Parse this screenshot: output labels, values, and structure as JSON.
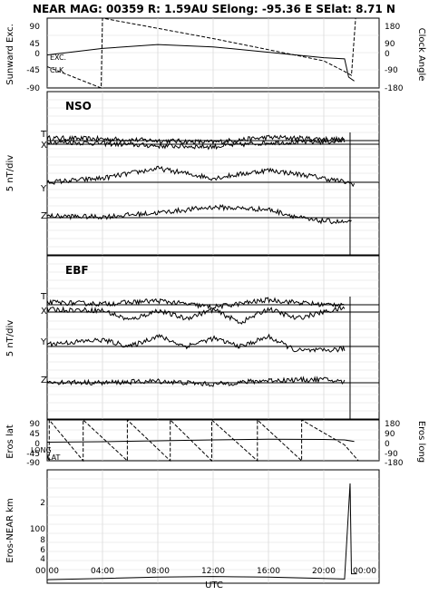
{
  "header": {
    "title": "NEAR MAG: 00359  R: 1.59AU  SElong:  -95.36 E  SElat:    8.71 N"
  },
  "panel1": {
    "left_label": "Sunward Exc.",
    "right_label": "Clock Angle",
    "left_ticks": [
      "90",
      "45",
      "0",
      "-45",
      "-90"
    ],
    "right_ticks": [
      "180",
      "90",
      "0",
      "-90",
      "-180"
    ],
    "annotations": [
      "EXC.",
      "CLK"
    ]
  },
  "panel2": {
    "title": "NSO",
    "ylabel": "5 nT/div",
    "traces": [
      "T",
      "X",
      "Y",
      "Z"
    ]
  },
  "panel3": {
    "title": "EBF",
    "ylabel": "5 nT/div",
    "traces": [
      "T",
      "X",
      "Y",
      "Z"
    ]
  },
  "panel4": {
    "left_label": "Eros lat",
    "right_label": "Eros long",
    "left_ticks": [
      "90",
      "45",
      "0",
      "-45",
      "-90"
    ],
    "right_ticks": [
      "180",
      "90",
      "0",
      "-90",
      "-180"
    ],
    "annotations": [
      "LONG",
      "LAT"
    ]
  },
  "panel5": {
    "left_label": "Eros-NEAR km",
    "ticks": [
      "2",
      "100",
      "8",
      "6",
      "4"
    ]
  },
  "xaxis": {
    "label": "UTC",
    "ticks": [
      "00:00",
      "04:00",
      "08:00",
      "12:00",
      "16:00",
      "20:00",
      "00:00"
    ]
  },
  "chart_data": {
    "type": "line",
    "x_range_hours": [
      0,
      24
    ],
    "grid": true,
    "panels": [
      {
        "name": "panel1",
        "left_axis_range": [
          -90,
          90
        ],
        "right_axis_range": [
          -180,
          180
        ],
        "series": [
          {
            "name": "EXC.",
            "axis": "left",
            "x": [
              0,
              4,
              8,
              12,
              16,
              20,
              21.5,
              21.8,
              22.2
            ],
            "y": [
              -5,
              12,
              22,
              16,
              2,
              -12,
              -15,
              -62,
              -72
            ]
          },
          {
            "name": "CLK",
            "axis": "right",
            "x": [
              0,
              3.9,
              4.0,
              12,
              20,
              21.5,
              22.0,
              22.3
            ],
            "y": [
              -70,
              -180,
              180,
              75,
              -40,
              -95,
              -115,
              180
            ]
          }
        ]
      },
      {
        "name": "NSO",
        "traces": [
          {
            "name": "T",
            "x": [
              0,
              4,
              8,
              12,
              16,
              20,
              21.5
            ],
            "y": [
              0.3,
              0.2,
              0.0,
              -0.2,
              0.4,
              0.2,
              0.1
            ]
          },
          {
            "name": "X",
            "x": [
              0,
              4,
              8,
              12,
              16,
              20,
              21.5
            ],
            "y": [
              0.3,
              0.1,
              -0.2,
              -0.3,
              0.2,
              0.3,
              0.4
            ]
          },
          {
            "name": "Y",
            "x": [
              0,
              4,
              8,
              12,
              16,
              19,
              21,
              22.2
            ],
            "y": [
              0.0,
              0.5,
              1.7,
              0.5,
              1.5,
              0.8,
              0.2,
              -0.2
            ]
          },
          {
            "name": "Z",
            "x": [
              0,
              4,
              8,
              12,
              16,
              19,
              21,
              22
            ],
            "y": [
              0.2,
              0.1,
              0.6,
              1.3,
              1.0,
              -0.3,
              -0.5,
              -0.6
            ]
          }
        ]
      },
      {
        "name": "EBF",
        "traces": [
          {
            "name": "T",
            "x": [
              0,
              4,
              8,
              12,
              16,
              20,
              21.5
            ],
            "y": [
              0.3,
              0.1,
              0.5,
              -0.3,
              0.6,
              0.0,
              0.1
            ]
          },
          {
            "name": "X",
            "x": [
              0,
              4,
              6,
              8,
              10,
              12,
              14,
              16,
              18,
              20,
              21.5
            ],
            "y": [
              0.3,
              0.2,
              -1.0,
              0.2,
              -0.8,
              0.3,
              -1.3,
              0.4,
              -0.8,
              0.0,
              0.5
            ]
          },
          {
            "name": "Y",
            "x": [
              0,
              4,
              6,
              8,
              10,
              12,
              14,
              16,
              18,
              20,
              21.5
            ],
            "y": [
              0.3,
              0.8,
              0.0,
              1.3,
              0.0,
              1.0,
              0.0,
              1.2,
              -0.5,
              -0.5,
              -0.3
            ]
          },
          {
            "name": "Z",
            "x": [
              0,
              4,
              8,
              12,
              16,
              20,
              21.5
            ],
            "y": [
              0.1,
              0.0,
              0.2,
              -0.2,
              0.3,
              0.4,
              0.1
            ]
          }
        ]
      },
      {
        "name": "panel4",
        "left_axis_range": [
          -90,
          90
        ],
        "right_axis_range": [
          -180,
          180
        ],
        "series": [
          {
            "name": "LAT",
            "axis": "left",
            "x": [
              0,
              4,
              8,
              12,
              16,
              20,
              21.5,
              22.2
            ],
            "y": [
              -8,
              -6,
              -2,
              2,
              5,
              4,
              2,
              -5
            ]
          },
          {
            "name": "LONG",
            "axis": "right",
            "x": [
              0,
              0.15,
              0.15,
              2.6,
              2.6,
              5.8,
              5.8,
              8.9,
              8.9,
              11.9,
              11.9,
              15.2,
              15.2,
              18.4,
              18.4,
              21.5,
              21.5,
              22.5
            ],
            "y": [
              -130,
              -180,
              180,
              -180,
              180,
              -180,
              180,
              -180,
              180,
              -180,
              180,
              -180,
              180,
              -180,
              180,
              -40,
              -40,
              -180
            ]
          }
        ]
      },
      {
        "name": "panel5",
        "series": [
          {
            "name": "Eros-NEAR km",
            "x": [
              0,
              4,
              8,
              12,
              16,
              20,
              21.5,
              21.9,
              22.0,
              22.4
            ],
            "y": [
              4,
              4.2,
              4.4,
              4.5,
              4.4,
              4.2,
              4.1,
              150,
              5,
              5
            ]
          }
        ]
      }
    ]
  }
}
